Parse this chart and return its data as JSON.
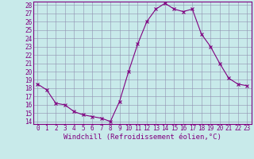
{
  "x": [
    0,
    1,
    2,
    3,
    4,
    5,
    6,
    7,
    8,
    9,
    10,
    11,
    12,
    13,
    14,
    15,
    16,
    17,
    18,
    19,
    20,
    21,
    22,
    23
  ],
  "y": [
    18.5,
    17.8,
    16.2,
    16.0,
    15.2,
    14.8,
    14.6,
    14.4,
    14.0,
    16.4,
    20.0,
    23.3,
    26.0,
    27.5,
    28.2,
    27.5,
    27.2,
    27.5,
    24.5,
    23.0,
    21.0,
    19.2,
    18.5,
    18.3
  ],
  "line_color": "#800080",
  "marker": "x",
  "marker_color": "#800080",
  "bg_color": "#c8eaea",
  "grid_color": "#9090b0",
  "xlabel": "Windchill (Refroidissement éolien,°C)",
  "xlim": [
    -0.5,
    23.5
  ],
  "ylim": [
    13.7,
    28.4
  ],
  "yticks": [
    14,
    15,
    16,
    17,
    18,
    19,
    20,
    21,
    22,
    23,
    24,
    25,
    26,
    27,
    28
  ],
  "xticks": [
    0,
    1,
    2,
    3,
    4,
    5,
    6,
    7,
    8,
    9,
    10,
    11,
    12,
    13,
    14,
    15,
    16,
    17,
    18,
    19,
    20,
    21,
    22,
    23
  ],
  "xlabel_fontsize": 6.5,
  "tick_fontsize": 5.5,
  "spine_color": "#800080"
}
